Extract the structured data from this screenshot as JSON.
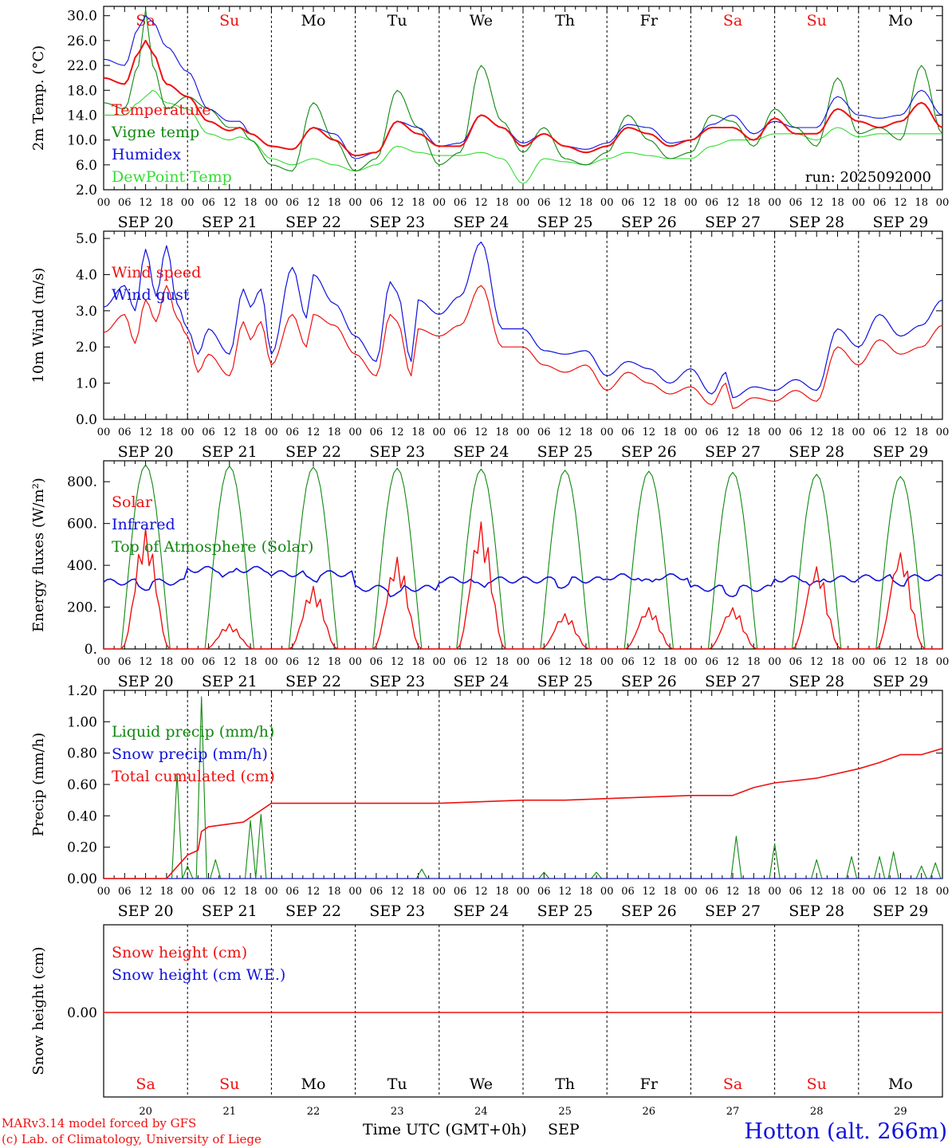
{
  "colors": {
    "red": "#ee1111",
    "green": "#118811",
    "blue": "#1111dd",
    "lightgreen": "#33dd33",
    "black": "#000000"
  },
  "days": [
    "Sa",
    "Su",
    "Mo",
    "Tu",
    "We",
    "Th",
    "Fr",
    "Sa",
    "Su",
    "Mo"
  ],
  "weekend_flags": [
    true,
    true,
    false,
    false,
    false,
    false,
    false,
    true,
    true,
    false
  ],
  "date_labels": [
    "SEP 20",
    "SEP 21",
    "SEP 22",
    "SEP 23",
    "SEP 24",
    "SEP 25",
    "SEP 26",
    "SEP 27",
    "SEP 28",
    "SEP 29"
  ],
  "hour_labels": [
    "00",
    "06",
    "12",
    "18"
  ],
  "end_hour_label": "00",
  "bottom_day_numbers": [
    "20",
    "21",
    "22",
    "23",
    "24",
    "25",
    "26",
    "27",
    "28",
    "29"
  ],
  "footer": {
    "model": "MARv3.14 model forced by GFS",
    "lab": "(c) Lab. of Climatology, University of Liege",
    "axis_label": "Time UTC (GMT+0h)",
    "month": "SEP",
    "station": "Hotton (alt. 266m)"
  },
  "chart_data": [
    {
      "type": "line",
      "id": "temp",
      "ylabel": "2m Temp. (°C)",
      "ylim": [
        2.0,
        31.5
      ],
      "yticks": [
        "2.0",
        "6.0",
        "10.0",
        "14.0",
        "18.0",
        "22.0",
        "26.0",
        "30.0"
      ],
      "ytick_values": [
        2,
        6,
        10,
        14,
        18,
        22,
        26,
        30
      ],
      "annotation": "run: 2025092000",
      "x_hours": [
        0,
        6,
        10,
        12,
        14,
        18,
        24,
        30,
        36,
        39,
        42,
        48,
        54,
        60,
        66,
        72,
        78,
        84,
        90,
        96,
        102,
        108,
        114,
        120,
        126,
        132,
        138,
        144,
        150,
        156,
        162,
        168,
        174,
        180,
        186,
        192,
        198,
        204,
        210,
        216,
        222,
        228,
        234,
        240
      ],
      "series": [
        {
          "name": "Temperature",
          "color": "red",
          "values": [
            20,
            19,
            24,
            26,
            24,
            19,
            17,
            13,
            11.5,
            12,
            11,
            9,
            8.5,
            12,
            10,
            7.5,
            8,
            13,
            11,
            9,
            9,
            14,
            12,
            9,
            11,
            9,
            8,
            9,
            12,
            11,
            9,
            10,
            12,
            12,
            10,
            13.5,
            11,
            11,
            15,
            13,
            12,
            13,
            16,
            12
          ]
        },
        {
          "name": "Vigne temp",
          "color": "green",
          "values": [
            16,
            15,
            22,
            31,
            22,
            15,
            17,
            15,
            12,
            12,
            10,
            6,
            5,
            16,
            10,
            5,
            7,
            18,
            12,
            6,
            8,
            22,
            13,
            8,
            12,
            7,
            6,
            8,
            14,
            10,
            7,
            8,
            14,
            13,
            9,
            15,
            12,
            9,
            20,
            11,
            12,
            10,
            22,
            11
          ]
        },
        {
          "name": "Humidex",
          "color": "blue",
          "values": [
            23,
            22,
            28,
            30,
            29,
            25,
            21,
            15,
            13,
            13,
            11,
            9,
            8.5,
            12,
            11,
            7,
            8,
            13,
            12,
            9,
            9.5,
            14,
            12,
            9.5,
            11,
            9,
            8.5,
            9.5,
            12.5,
            12,
            9.5,
            10,
            12.5,
            14,
            11,
            13,
            12,
            12,
            17,
            14,
            13.5,
            14,
            18,
            14
          ]
        },
        {
          "name": "DewPoint Temp",
          "color": "lightgreen",
          "values": [
            14,
            14,
            16,
            17,
            18,
            16,
            15,
            11,
            10,
            10.5,
            10,
            7,
            6,
            7,
            6,
            5,
            6,
            9,
            8,
            7.5,
            7.5,
            8,
            7,
            3,
            7,
            6.5,
            6,
            7,
            8,
            7.5,
            7,
            7,
            9,
            10,
            10,
            11,
            11,
            10,
            12,
            10.5,
            11,
            11,
            11,
            11
          ]
        }
      ],
      "legend_position": "upper-left"
    },
    {
      "type": "line",
      "id": "wind",
      "ylabel": "10m Wind (m/s)",
      "ylim": [
        0.0,
        5.2
      ],
      "yticks": [
        "0.0",
        "1.0",
        "2.0",
        "3.0",
        "4.0",
        "5.0"
      ],
      "ytick_values": [
        0,
        1,
        2,
        3,
        4,
        5
      ],
      "x_hours": [
        0,
        6,
        9,
        12,
        15,
        18,
        21,
        24,
        27,
        30,
        36,
        40,
        42,
        45,
        48,
        54,
        58,
        60,
        66,
        72,
        78,
        82,
        84,
        88,
        90,
        96,
        102,
        108,
        114,
        120,
        126,
        132,
        138,
        144,
        150,
        156,
        162,
        168,
        174,
        178,
        180,
        186,
        192,
        198,
        204,
        210,
        216,
        222,
        228,
        234,
        240
      ],
      "series": [
        {
          "name": "Wind speed",
          "color": "red",
          "values": [
            2.4,
            2.9,
            2.1,
            3.3,
            2.7,
            3.7,
            2.8,
            2.3,
            1.3,
            1.8,
            1.2,
            2.7,
            2.2,
            2.7,
            1.5,
            2.9,
            2.0,
            2.9,
            2.6,
            1.8,
            1.2,
            2.9,
            2.7,
            1.2,
            2.5,
            2.3,
            2.6,
            3.7,
            2.0,
            2.0,
            1.5,
            1.3,
            1.5,
            0.8,
            1.3,
            1.0,
            0.7,
            0.9,
            0.4,
            1.0,
            0.3,
            0.6,
            0.5,
            0.8,
            0.5,
            2.0,
            1.5,
            2.2,
            1.8,
            2.0,
            2.6
          ]
        },
        {
          "name": "Wind gust",
          "color": "blue",
          "values": [
            3.1,
            3.7,
            3.0,
            4.7,
            3.4,
            4.8,
            3.2,
            2.5,
            1.8,
            2.5,
            1.8,
            3.6,
            3.1,
            3.6,
            1.8,
            4.2,
            2.8,
            4.0,
            3.2,
            2.3,
            1.6,
            3.8,
            3.5,
            1.6,
            3.3,
            2.9,
            3.4,
            4.9,
            2.5,
            2.5,
            1.9,
            1.8,
            1.9,
            1.2,
            1.6,
            1.4,
            1.0,
            1.4,
            0.7,
            1.3,
            0.6,
            0.9,
            0.8,
            1.1,
            0.8,
            2.5,
            2.0,
            2.9,
            2.3,
            2.6,
            3.3
          ]
        }
      ],
      "legend_position": "upper-left"
    },
    {
      "type": "line",
      "id": "energy",
      "ylabel": "Energy fluxes (W/m²)",
      "ylim": [
        0,
        900
      ],
      "yticks": [
        "0.",
        "200.",
        "400.",
        "600.",
        "800."
      ],
      "ytick_values": [
        0,
        200,
        400,
        600,
        800
      ],
      "top_of_atmosphere_peaks": [
        880,
        875,
        870,
        865,
        860,
        855,
        850,
        845,
        835,
        825
      ],
      "solar_peaks": [
        575,
        120,
        300,
        440,
        610,
        170,
        200,
        200,
        400,
        470
      ],
      "infrared_levels": [
        320,
        380,
        360,
        290,
        330,
        330,
        345,
        290,
        335,
        340
      ],
      "series": [
        {
          "name": "Solar",
          "color": "red"
        },
        {
          "name": "Infrared",
          "color": "blue"
        },
        {
          "name": "Top of Atmosphere (Solar)",
          "color": "green"
        }
      ],
      "legend_position": "upper-left"
    },
    {
      "type": "line",
      "id": "precip",
      "ylabel": "Precip (mm/h)",
      "ylim": [
        0.0,
        1.2
      ],
      "yticks": [
        "0.00",
        "0.20",
        "0.40",
        "0.60",
        "0.80",
        "1.00",
        "1.20"
      ],
      "ytick_values": [
        0,
        0.2,
        0.4,
        0.6,
        0.8,
        1.0,
        1.2
      ],
      "liquid_events": [
        {
          "h": 21,
          "v": 0.67
        },
        {
          "h": 24,
          "v": 0.08
        },
        {
          "h": 28,
          "v": 1.16
        },
        {
          "h": 32,
          "v": 0.12
        },
        {
          "h": 42,
          "v": 0.37
        },
        {
          "h": 45,
          "v": 0.41
        },
        {
          "h": 91,
          "v": 0.06
        },
        {
          "h": 126,
          "v": 0.04
        },
        {
          "h": 141,
          "v": 0.04
        },
        {
          "h": 181,
          "v": 0.27
        },
        {
          "h": 192,
          "v": 0.22
        },
        {
          "h": 204,
          "v": 0.12
        },
        {
          "h": 214,
          "v": 0.14
        },
        {
          "h": 222,
          "v": 0.14
        },
        {
          "h": 226,
          "v": 0.17
        },
        {
          "h": 234,
          "v": 0.08
        },
        {
          "h": 238,
          "v": 0.1
        }
      ],
      "cumulated_x": [
        0,
        18,
        22,
        24,
        27,
        28,
        30,
        40,
        44,
        48,
        96,
        120,
        132,
        144,
        168,
        180,
        186,
        192,
        204,
        216,
        222,
        228,
        234,
        240
      ],
      "cumulated_values": [
        0,
        0,
        0.1,
        0.15,
        0.18,
        0.3,
        0.33,
        0.36,
        0.42,
        0.48,
        0.48,
        0.5,
        0.5,
        0.51,
        0.53,
        0.53,
        0.58,
        0.61,
        0.64,
        0.7,
        0.74,
        0.79,
        0.79,
        0.83
      ],
      "series": [
        {
          "name": "Liquid precip (mm/h)",
          "color": "green"
        },
        {
          "name": "Snow precip (mm/h)",
          "color": "blue"
        },
        {
          "name": "Total cumulated (cm)",
          "color": "red"
        }
      ],
      "legend_position": "upper-left"
    },
    {
      "type": "line",
      "id": "snow",
      "ylabel": "Snow height (cm)",
      "yticks": [
        "0.00"
      ],
      "ytick_values": [
        0
      ],
      "values_constant": 0.0,
      "series": [
        {
          "name": "Snow height (cm)",
          "color": "red"
        },
        {
          "name": "Snow height (cm W.E.)",
          "color": "blue"
        }
      ],
      "legend_position": "upper-left"
    }
  ]
}
